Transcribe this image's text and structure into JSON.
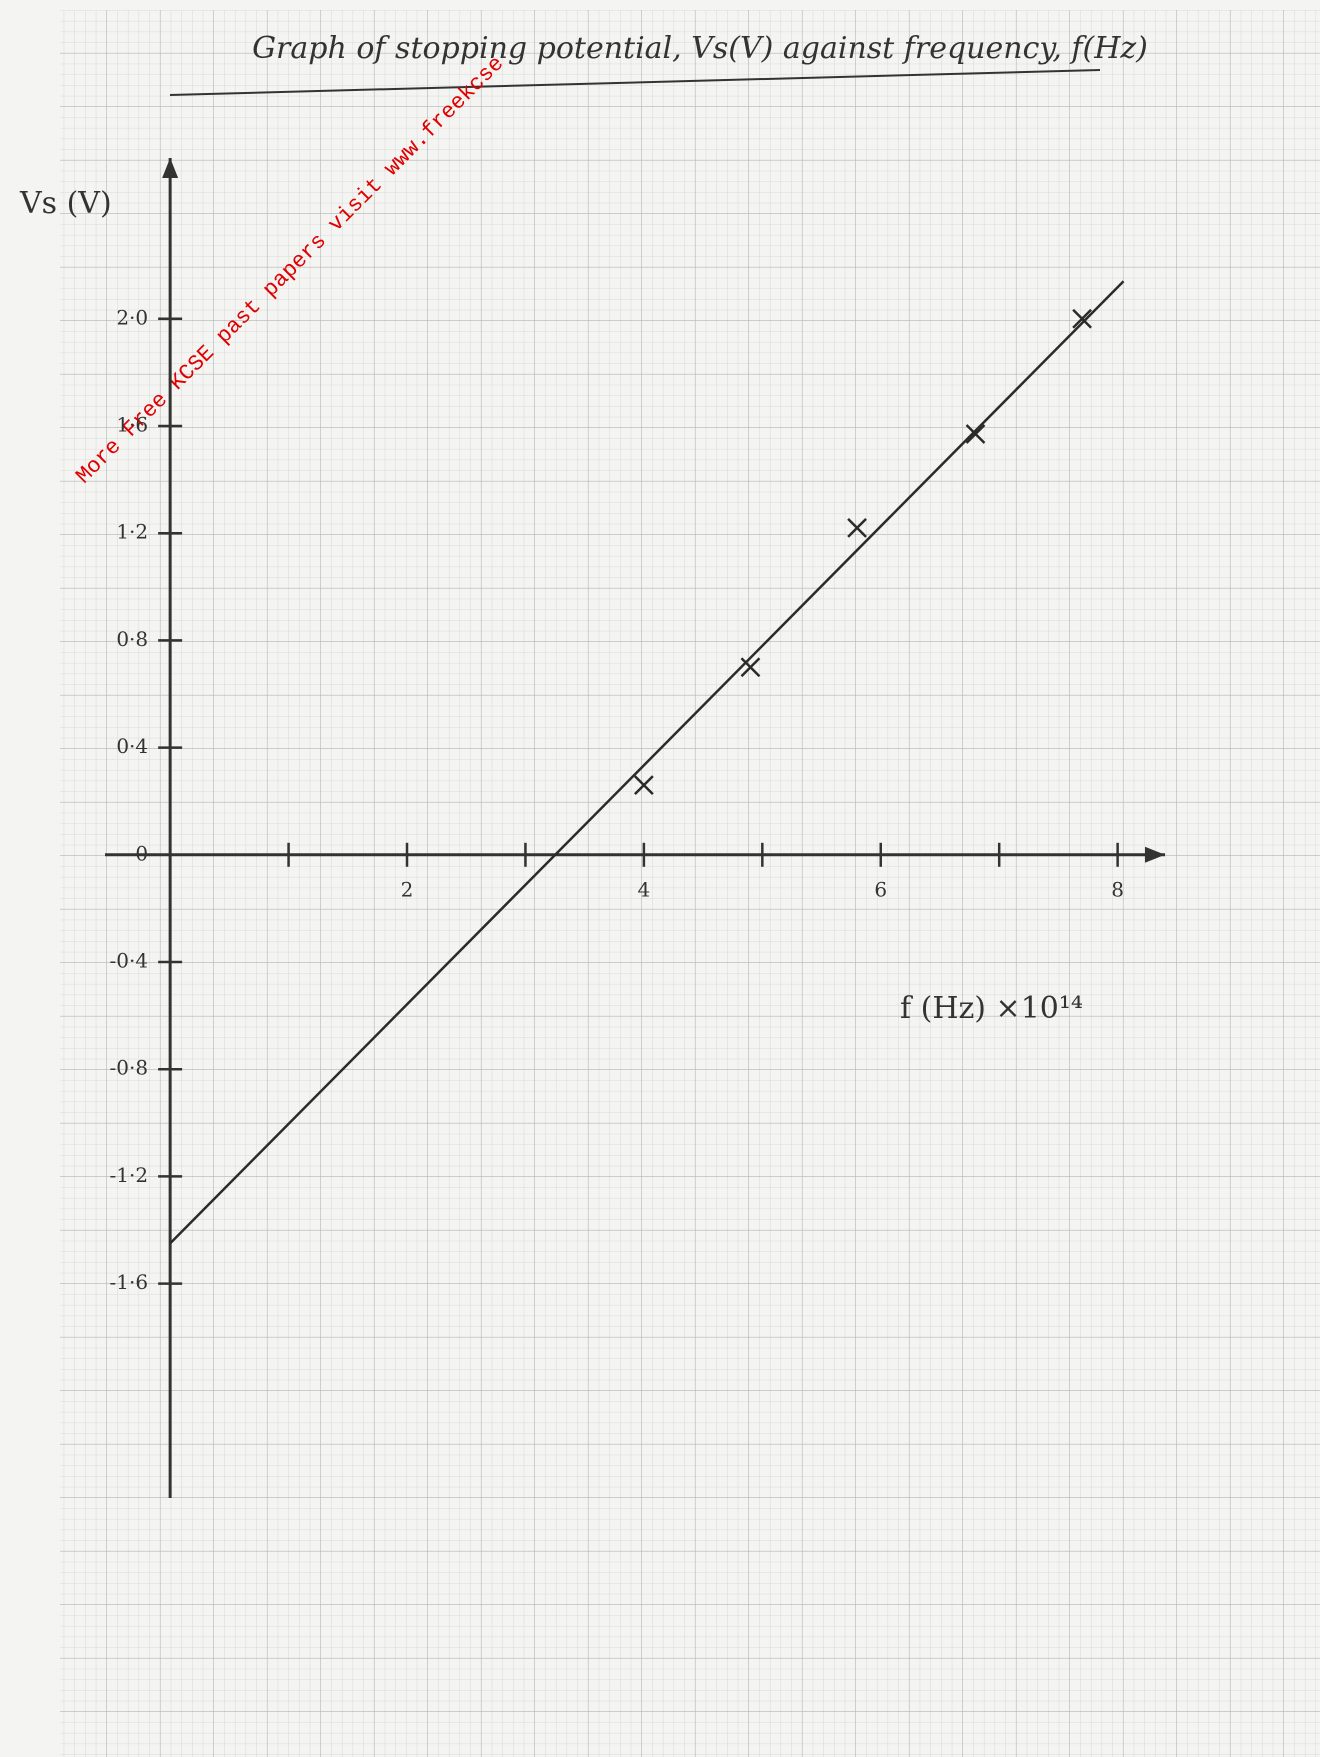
{
  "chart_data": {
    "type": "scatter",
    "title": "Graph of stopping potential, Vs(V) against frequency, f(Hz)",
    "y_label": "Vs (V)",
    "x_label": "f (Hz) ×10¹⁴",
    "watermark": "More Free KCSE past papers visit www.freekcse",
    "xlim": [
      -0.55,
      8.4
    ],
    "ylim": [
      -2.4,
      2.6
    ],
    "xticks": [
      2,
      4,
      6,
      8
    ],
    "x_minor_ticks": [
      1,
      3,
      5,
      7
    ],
    "yticks": [
      {
        "value": 2.0,
        "label": "2·0"
      },
      {
        "value": 1.6,
        "label": "1·6"
      },
      {
        "value": 1.2,
        "label": "1·2"
      },
      {
        "value": 0.8,
        "label": "0·8"
      },
      {
        "value": 0.4,
        "label": "0·4"
      },
      0,
      {
        "value": -0.4,
        "label": "-0·4"
      },
      {
        "value": -0.8,
        "label": "-0·8"
      },
      {
        "value": -1.2,
        "label": "-1·2"
      },
      {
        "value": -1.6,
        "label": "-1·6"
      }
    ],
    "points": {
      "color": "#2b2b2b",
      "x": [
        4.0,
        4.9,
        5.8,
        6.8,
        7.7
      ],
      "values": [
        0.26,
        0.7,
        1.22,
        1.57,
        2.0
      ]
    },
    "fit": {
      "color": "#2b2b2b",
      "x": [
        0,
        8.05
      ],
      "values": [
        -1.45,
        2.14
      ]
    },
    "grid": true
  }
}
